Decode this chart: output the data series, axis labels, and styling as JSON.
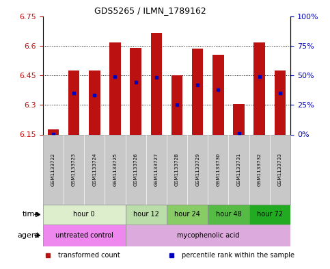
{
  "title": "GDS5265 / ILMN_1789162",
  "samples": [
    "GSM1133722",
    "GSM1133723",
    "GSM1133724",
    "GSM1133725",
    "GSM1133726",
    "GSM1133727",
    "GSM1133728",
    "GSM1133729",
    "GSM1133730",
    "GSM1133731",
    "GSM1133732",
    "GSM1133733"
  ],
  "bar_bottom": 6.15,
  "bar_tops": [
    6.175,
    6.475,
    6.475,
    6.615,
    6.59,
    6.665,
    6.45,
    6.585,
    6.555,
    6.305,
    6.615,
    6.475
  ],
  "percentile_values": [
    0.5,
    35,
    33,
    49,
    44,
    48,
    25,
    42,
    38,
    1,
    49,
    35
  ],
  "ylim": [
    6.15,
    6.75
  ],
  "yticks": [
    6.15,
    6.3,
    6.45,
    6.6,
    6.75
  ],
  "right_yticks": [
    0,
    25,
    50,
    75,
    100
  ],
  "right_yticklabels": [
    "0",
    "25",
    "50",
    "75",
    "100%"
  ],
  "bar_color": "#bb1111",
  "dot_color": "#0000bb",
  "time_groups": [
    {
      "label": "hour 0",
      "start": 0,
      "end": 4,
      "color": "#ddeecc"
    },
    {
      "label": "hour 12",
      "start": 4,
      "end": 6,
      "color": "#bbddaa"
    },
    {
      "label": "hour 24",
      "start": 6,
      "end": 8,
      "color": "#88cc66"
    },
    {
      "label": "hour 48",
      "start": 8,
      "end": 10,
      "color": "#55bb44"
    },
    {
      "label": "hour 72",
      "start": 10,
      "end": 12,
      "color": "#22aa22"
    }
  ],
  "agent_groups": [
    {
      "label": "untreated control",
      "start": 0,
      "end": 4,
      "color": "#ee88ee"
    },
    {
      "label": "mycophenolic acid",
      "start": 4,
      "end": 12,
      "color": "#ddaadd"
    }
  ],
  "legend_items": [
    {
      "label": "transformed count",
      "color": "#bb1111",
      "marker": "s"
    },
    {
      "label": "percentile rank within the sample",
      "color": "#0000bb",
      "marker": "s"
    }
  ]
}
